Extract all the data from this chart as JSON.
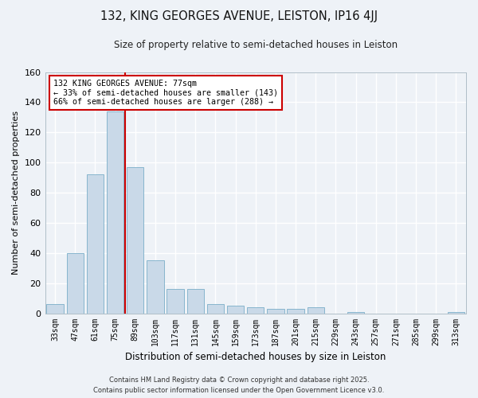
{
  "title1": "132, KING GEORGES AVENUE, LEISTON, IP16 4JJ",
  "title2": "Size of property relative to semi-detached houses in Leiston",
  "xlabel": "Distribution of semi-detached houses by size in Leiston",
  "ylabel": "Number of semi-detached properties",
  "categories": [
    "33sqm",
    "47sqm",
    "61sqm",
    "75sqm",
    "89sqm",
    "103sqm",
    "117sqm",
    "131sqm",
    "145sqm",
    "159sqm",
    "173sqm",
    "187sqm",
    "201sqm",
    "215sqm",
    "229sqm",
    "243sqm",
    "257sqm",
    "271sqm",
    "285sqm",
    "299sqm",
    "313sqm"
  ],
  "values": [
    6,
    40,
    92,
    134,
    97,
    35,
    16,
    16,
    6,
    5,
    4,
    3,
    3,
    4,
    0,
    1,
    0,
    0,
    0,
    0,
    1
  ],
  "bar_color": "#c9d9e8",
  "bar_edge_color": "#7aaec8",
  "vline_color": "#cc0000",
  "vline_pos": 3.5,
  "ylim": [
    0,
    160
  ],
  "yticks": [
    0,
    20,
    40,
    60,
    80,
    100,
    120,
    140,
    160
  ],
  "annotation_title": "132 KING GEORGES AVENUE: 77sqm",
  "annotation_line1": "← 33% of semi-detached houses are smaller (143)",
  "annotation_line2": "66% of semi-detached houses are larger (288) →",
  "annotation_box_color": "#ffffff",
  "annotation_box_edge_color": "#cc0000",
  "footer1": "Contains HM Land Registry data © Crown copyright and database right 2025.",
  "footer2": "Contains public sector information licensed under the Open Government Licence v3.0.",
  "bg_color": "#eef2f7",
  "plot_bg_color": "#eef2f7",
  "grid_color": "#ffffff"
}
